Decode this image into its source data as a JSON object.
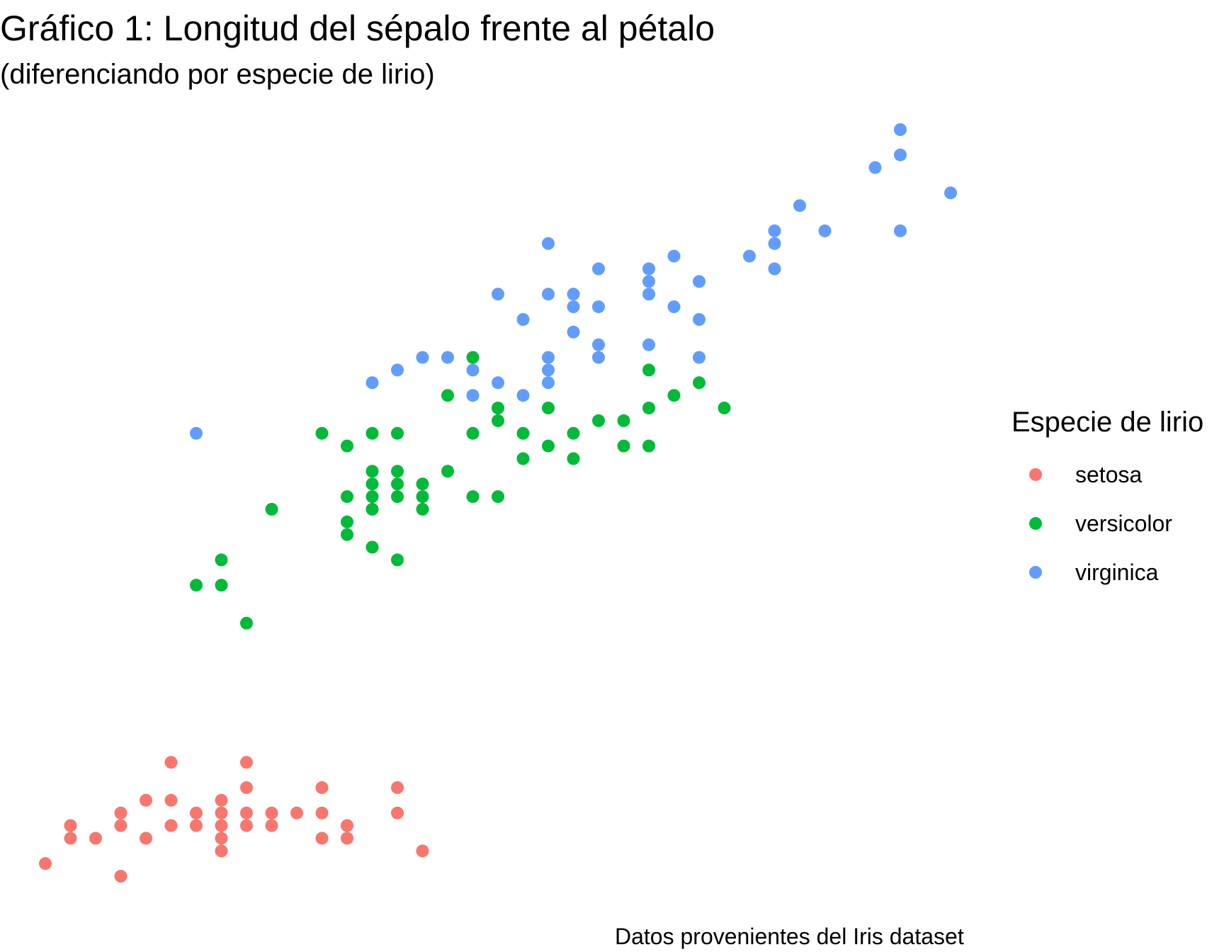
{
  "header": {
    "title": "Gráfico 1: Longitud del sépalo frente al pétalo",
    "subtitle": "(diferenciando por especie de lirio)"
  },
  "caption": "Datos provenientes del Iris dataset",
  "legend": {
    "title": "Especie de lirio",
    "placement": "right",
    "items": [
      {
        "label": "setosa",
        "color": "#F8766D"
      },
      {
        "label": "versicolor",
        "color": "#00BA38"
      },
      {
        "label": "virginica",
        "color": "#619CFF"
      }
    ]
  },
  "chart_data": {
    "type": "scatter",
    "title": "Gráfico 1: Longitud del sépalo frente al pétalo",
    "subtitle": "(diferenciando por especie de lirio)",
    "xlabel": "",
    "ylabel": "",
    "xlim": [
      4.2,
      8.0
    ],
    "ylim": [
      0.8,
      7.1
    ],
    "grid": false,
    "axes_visible": false,
    "series": [
      {
        "name": "setosa",
        "color": "#F8766D",
        "points": [
          [
            4.3,
            1.1
          ],
          [
            4.4,
            1.3
          ],
          [
            4.4,
            1.4
          ],
          [
            4.5,
            1.3
          ],
          [
            4.6,
            1.0
          ],
          [
            4.6,
            1.4
          ],
          [
            4.6,
            1.5
          ],
          [
            4.7,
            1.3
          ],
          [
            4.7,
            1.6
          ],
          [
            4.8,
            1.9
          ],
          [
            4.8,
            1.6
          ],
          [
            4.8,
            1.4
          ],
          [
            4.9,
            1.5
          ],
          [
            4.9,
            1.4
          ],
          [
            5.0,
            1.2
          ],
          [
            5.0,
            1.3
          ],
          [
            5.0,
            1.4
          ],
          [
            5.0,
            1.5
          ],
          [
            5.0,
            1.6
          ],
          [
            5.1,
            1.9
          ],
          [
            5.1,
            1.7
          ],
          [
            5.1,
            1.5
          ],
          [
            5.1,
            1.4
          ],
          [
            5.2,
            1.5
          ],
          [
            5.2,
            1.4
          ],
          [
            5.3,
            1.5
          ],
          [
            5.4,
            1.7
          ],
          [
            5.4,
            1.5
          ],
          [
            5.4,
            1.3
          ],
          [
            5.5,
            1.4
          ],
          [
            5.5,
            1.3
          ],
          [
            5.7,
            1.7
          ],
          [
            5.7,
            1.5
          ],
          [
            5.8,
            1.2
          ]
        ]
      },
      {
        "name": "versicolor",
        "color": "#00BA38",
        "points": [
          [
            4.9,
            3.3
          ],
          [
            5.0,
            3.3
          ],
          [
            5.0,
            3.5
          ],
          [
            5.1,
            3.0
          ],
          [
            5.2,
            3.9
          ],
          [
            5.4,
            4.5
          ],
          [
            5.5,
            4.4
          ],
          [
            5.5,
            4.0
          ],
          [
            5.5,
            3.8
          ],
          [
            5.5,
            3.7
          ],
          [
            5.6,
            4.5
          ],
          [
            5.6,
            4.2
          ],
          [
            5.6,
            4.1
          ],
          [
            5.6,
            4.0
          ],
          [
            5.6,
            3.9
          ],
          [
            5.6,
            3.6
          ],
          [
            5.7,
            4.5
          ],
          [
            5.7,
            4.2
          ],
          [
            5.7,
            4.1
          ],
          [
            5.7,
            4.0
          ],
          [
            5.7,
            3.5
          ],
          [
            5.8,
            4.1
          ],
          [
            5.8,
            4.0
          ],
          [
            5.8,
            3.9
          ],
          [
            5.9,
            4.8
          ],
          [
            5.9,
            4.2
          ],
          [
            6.0,
            5.1
          ],
          [
            6.0,
            4.5
          ],
          [
            6.0,
            4.0
          ],
          [
            6.1,
            4.7
          ],
          [
            6.1,
            4.6
          ],
          [
            6.1,
            4.0
          ],
          [
            6.2,
            4.5
          ],
          [
            6.2,
            4.3
          ],
          [
            6.3,
            4.7
          ],
          [
            6.3,
            4.4
          ],
          [
            6.4,
            4.5
          ],
          [
            6.4,
            4.3
          ],
          [
            6.5,
            4.6
          ],
          [
            6.6,
            4.6
          ],
          [
            6.6,
            4.4
          ],
          [
            6.7,
            5.0
          ],
          [
            6.7,
            4.7
          ],
          [
            6.7,
            4.4
          ],
          [
            6.8,
            4.8
          ],
          [
            6.9,
            4.9
          ],
          [
            7.0,
            4.7
          ]
        ]
      },
      {
        "name": "virginica",
        "color": "#619CFF",
        "points": [
          [
            4.9,
            4.5
          ],
          [
            5.6,
            4.9
          ],
          [
            5.7,
            5.0
          ],
          [
            5.8,
            5.1
          ],
          [
            5.9,
            5.1
          ],
          [
            6.0,
            5.0
          ],
          [
            6.0,
            4.8
          ],
          [
            6.1,
            5.6
          ],
          [
            6.1,
            4.9
          ],
          [
            6.2,
            5.4
          ],
          [
            6.2,
            4.8
          ],
          [
            6.3,
            6.0
          ],
          [
            6.3,
            5.6
          ],
          [
            6.3,
            5.1
          ],
          [
            6.3,
            5.0
          ],
          [
            6.3,
            4.9
          ],
          [
            6.4,
            5.6
          ],
          [
            6.4,
            5.5
          ],
          [
            6.4,
            5.3
          ],
          [
            6.5,
            5.8
          ],
          [
            6.5,
            5.5
          ],
          [
            6.5,
            5.2
          ],
          [
            6.5,
            5.1
          ],
          [
            6.7,
            5.8
          ],
          [
            6.7,
            5.7
          ],
          [
            6.7,
            5.6
          ],
          [
            6.7,
            5.2
          ],
          [
            6.8,
            5.9
          ],
          [
            6.8,
            5.5
          ],
          [
            6.9,
            5.7
          ],
          [
            6.9,
            5.4
          ],
          [
            6.9,
            5.1
          ],
          [
            7.1,
            5.9
          ],
          [
            7.2,
            6.1
          ],
          [
            7.2,
            6.0
          ],
          [
            7.2,
            5.8
          ],
          [
            7.3,
            6.3
          ],
          [
            7.4,
            6.1
          ],
          [
            7.6,
            6.6
          ],
          [
            7.7,
            6.9
          ],
          [
            7.7,
            6.7
          ],
          [
            7.7,
            6.1
          ],
          [
            7.9,
            6.4
          ]
        ]
      }
    ]
  }
}
